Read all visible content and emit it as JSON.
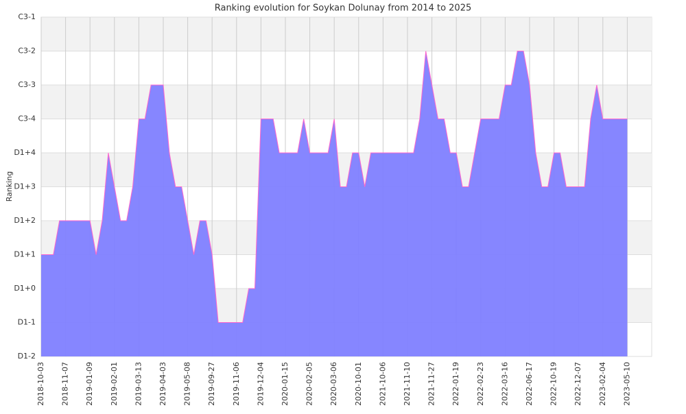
{
  "chart_data": {
    "type": "area",
    "title": "Ranking evolution for Soykan Dolunay from 2014 to 2025",
    "y_label": "Ranking",
    "categories": [
      "2018-10-03",
      null,
      null,
      null,
      "2018-11-07",
      null,
      null,
      null,
      "2019-01-09",
      null,
      null,
      null,
      "2019-02-01",
      null,
      null,
      null,
      "2019-03-13",
      null,
      null,
      null,
      "2019-04-03",
      null,
      null,
      null,
      "2019-05-08",
      null,
      null,
      null,
      "2019-09-27",
      null,
      null,
      null,
      "2019-11-06",
      null,
      null,
      null,
      "2019-12-04",
      null,
      null,
      null,
      "2020-01-15",
      null,
      null,
      null,
      "2020-02-05",
      null,
      null,
      null,
      "2020-03-06",
      null,
      null,
      null,
      "2020-10-01",
      null,
      null,
      null,
      "2021-10-06",
      null,
      null,
      null,
      "2021-11-10",
      null,
      null,
      null,
      "2021-11-27",
      null,
      null,
      null,
      "2022-01-19",
      null,
      null,
      null,
      "2022-02-23",
      null,
      null,
      null,
      "2022-03-16",
      null,
      null,
      null,
      "2022-06-17",
      null,
      null,
      null,
      "2022-10-19",
      null,
      null,
      null,
      "2022-12-07",
      null,
      null,
      null,
      "2023-02-04",
      null,
      null,
      null,
      "2023-05-10",
      null,
      null,
      null,
      null
    ],
    "values": [
      3,
      3,
      3,
      4,
      4,
      4,
      4,
      4,
      4,
      3,
      4,
      6,
      5,
      4,
      4,
      5,
      7,
      7,
      8,
      8,
      8,
      6,
      5,
      5,
      4,
      3,
      4,
      4,
      3,
      1,
      1,
      1,
      1,
      1,
      2,
      2,
      7,
      7,
      7,
      6,
      6,
      6,
      6,
      7,
      6,
      6,
      6,
      6,
      7,
      5,
      5,
      6,
      6,
      5,
      6,
      6,
      6,
      6,
      6,
      6,
      6,
      6,
      7,
      9,
      8,
      7,
      7,
      6,
      6,
      5,
      5,
      6,
      7,
      7,
      7,
      7,
      8,
      8,
      9,
      9,
      8,
      6,
      5,
      5,
      6,
      6,
      5,
      5,
      5,
      5,
      7,
      8,
      7,
      7,
      7,
      7,
      7,
      null,
      null,
      null,
      null
    ],
    "ylim": [
      0,
      10
    ],
    "yticks": [
      {
        "value": 0,
        "label": "D1-2"
      },
      {
        "value": 1,
        "label": "D1-1"
      },
      {
        "value": 2,
        "label": "D1+0"
      },
      {
        "value": 3,
        "label": "D1+1"
      },
      {
        "value": 4,
        "label": "D1+2"
      },
      {
        "value": 5,
        "label": "D1+3"
      },
      {
        "value": 6,
        "label": "D1+4"
      },
      {
        "value": 7,
        "label": "C3-4"
      },
      {
        "value": 8,
        "label": "C3-3"
      },
      {
        "value": 9,
        "label": "C3-2"
      },
      {
        "value": 10,
        "label": "C3-1"
      }
    ],
    "color": "#7f7fff",
    "line_color": "#ff66cc",
    "grid": true
  }
}
